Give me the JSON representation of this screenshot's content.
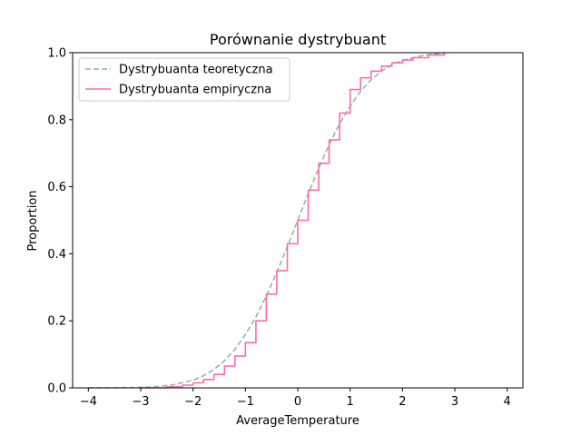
{
  "chart_data": {
    "type": "line",
    "title": "Porównanie dystrybuant",
    "xlabel": "AverageTemperature",
    "ylabel": "Proportion",
    "xlim": [
      -4.3,
      4.3
    ],
    "ylim": [
      0.0,
      1.0
    ],
    "xticks": [
      -4,
      -3,
      -2,
      -1,
      0,
      1,
      2,
      3,
      4
    ],
    "yticks": [
      0.0,
      0.2,
      0.4,
      0.6,
      0.8,
      1.0
    ],
    "xtick_labels": [
      "−4",
      "−3",
      "−2",
      "−1",
      "0",
      "1",
      "2",
      "3",
      "4"
    ],
    "ytick_labels": [
      "0.0",
      "0.2",
      "0.4",
      "0.6",
      "0.8",
      "1.0"
    ],
    "grid": false,
    "legend_position": "top-left",
    "series": [
      {
        "name": "Dystrybuanta teoretyczna",
        "color": "#8fbc8f",
        "style": "dashed",
        "x": [
          -4.0,
          -3.6,
          -3.2,
          -2.8,
          -2.4,
          -2.0,
          -1.8,
          -1.6,
          -1.4,
          -1.2,
          -1.0,
          -0.8,
          -0.6,
          -0.4,
          -0.2,
          0.0,
          0.2,
          0.4,
          0.6,
          0.8,
          1.0,
          1.2,
          1.4,
          1.6,
          1.8,
          2.0,
          2.4,
          2.8
        ],
        "y": [
          0.0,
          0.0002,
          0.0007,
          0.0026,
          0.0082,
          0.023,
          0.036,
          0.055,
          0.081,
          0.115,
          0.159,
          0.212,
          0.274,
          0.345,
          0.421,
          0.5,
          0.579,
          0.655,
          0.726,
          0.788,
          0.841,
          0.885,
          0.919,
          0.945,
          0.964,
          0.977,
          0.992,
          1.0
        ]
      },
      {
        "name": "Dystrybuanta empiryczna",
        "color": "#ff69b4",
        "style": "solid",
        "x": [
          -3.0,
          -2.5,
          -2.2,
          -2.0,
          -1.8,
          -1.6,
          -1.4,
          -1.2,
          -1.0,
          -0.8,
          -0.6,
          -0.4,
          -0.2,
          0.0,
          0.2,
          0.4,
          0.6,
          0.8,
          1.0,
          1.2,
          1.4,
          1.6,
          1.8,
          2.0,
          2.2,
          2.5,
          2.8
        ],
        "y": [
          0.0,
          0.003,
          0.008,
          0.015,
          0.025,
          0.04,
          0.065,
          0.095,
          0.135,
          0.2,
          0.28,
          0.35,
          0.43,
          0.5,
          0.59,
          0.67,
          0.74,
          0.82,
          0.89,
          0.925,
          0.945,
          0.96,
          0.97,
          0.978,
          0.985,
          0.993,
          1.0
        ]
      }
    ]
  }
}
